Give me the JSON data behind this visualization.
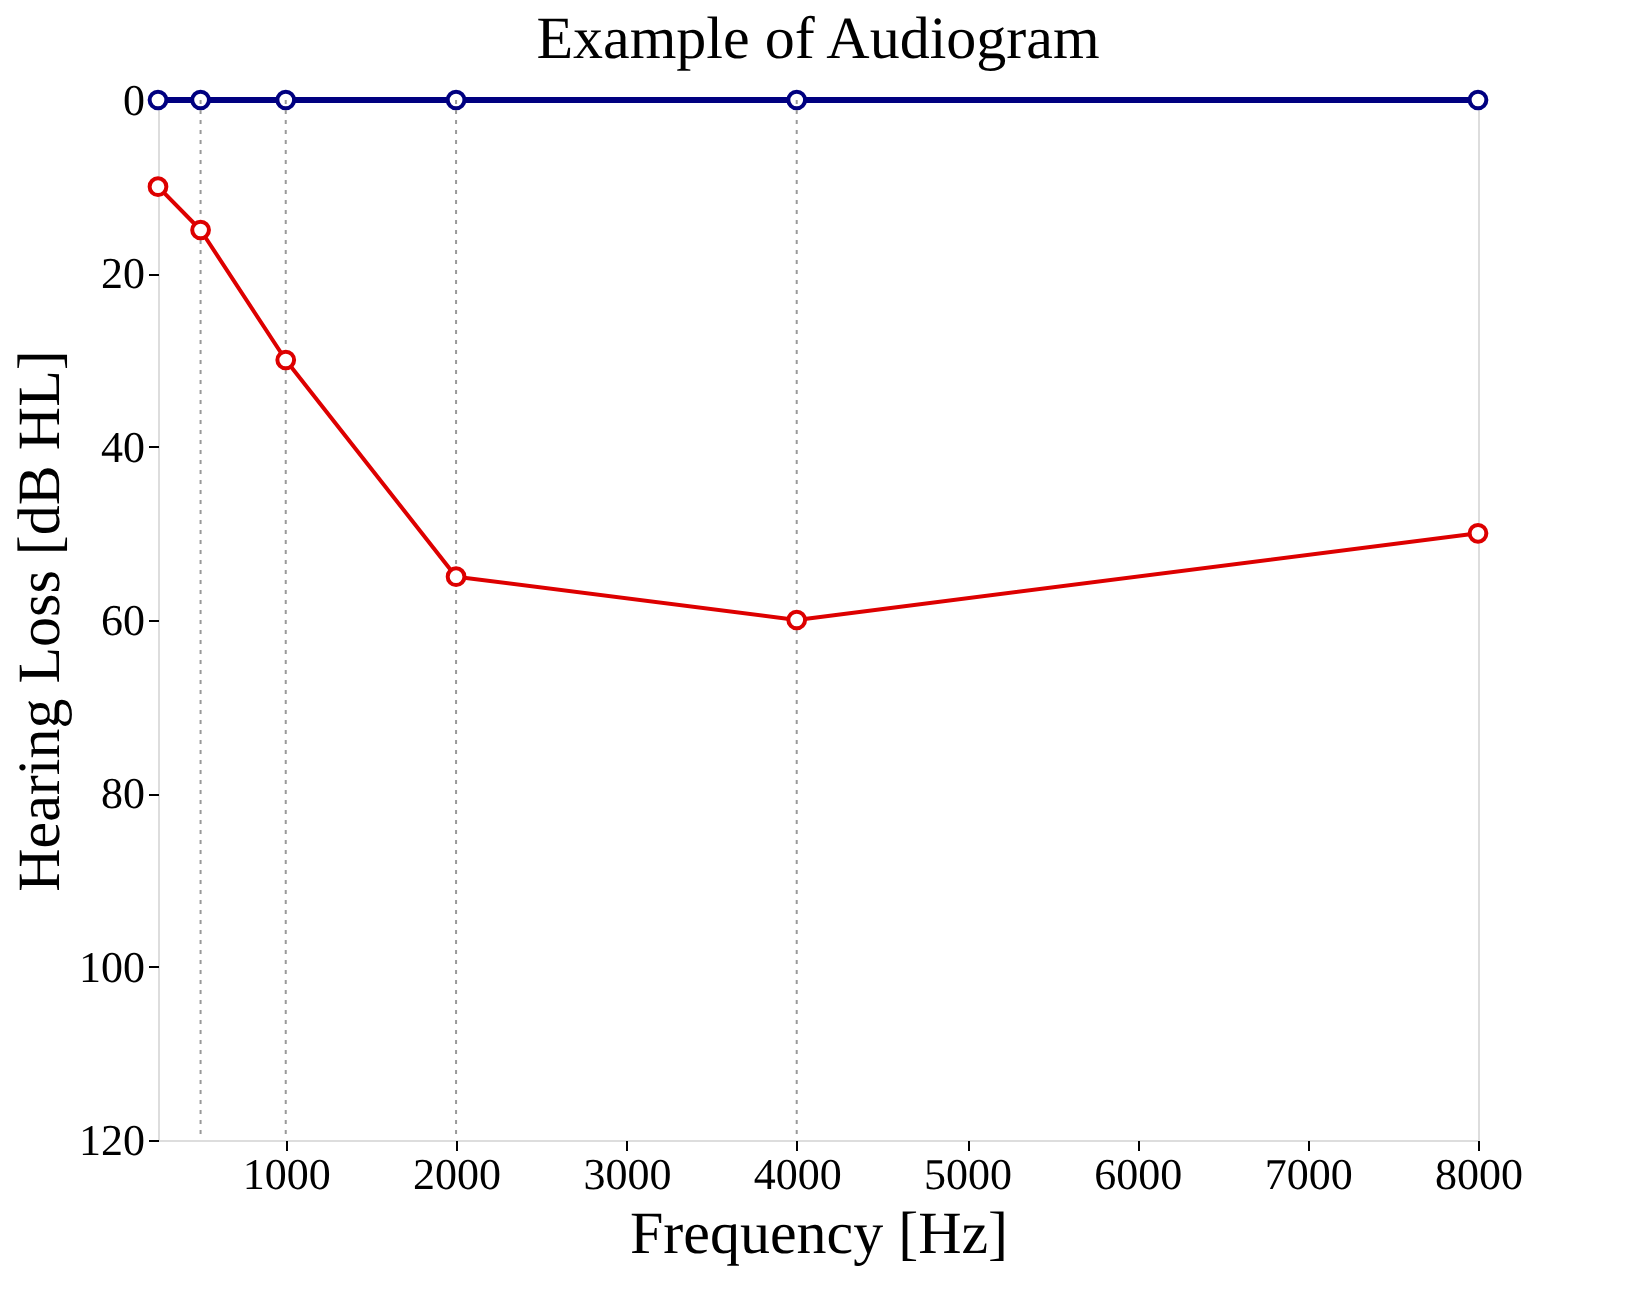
{
  "chart_data": {
    "type": "line",
    "title": "Example of Audiogram",
    "xlabel": "Frequency [Hz]",
    "ylabel": "Hearing Loss [dB HL]",
    "x": [
      250,
      500,
      1000,
      2000,
      4000,
      8000
    ],
    "series": [
      {
        "color": "#000080",
        "values": [
          0,
          0,
          0,
          0,
          0,
          0
        ]
      },
      {
        "color": "#dd0000",
        "values": [
          10,
          15,
          30,
          55,
          60,
          50
        ]
      }
    ],
    "xlim": [
      250,
      8000
    ],
    "xticks": [
      1000,
      2000,
      3000,
      4000,
      5000,
      6000,
      7000,
      8000
    ],
    "ylim": [
      120,
      0
    ],
    "yticks": [
      0,
      20,
      40,
      60,
      80,
      100,
      120
    ],
    "ref_lines": [
      {
        "axis": "x",
        "value": 500,
        "color": "#999999",
        "line_style": "dotted"
      },
      {
        "axis": "x",
        "value": 1000,
        "color": "#999999",
        "line_style": "dotted"
      },
      {
        "axis": "x",
        "value": 2000,
        "color": "#999999",
        "line_style": "dotted"
      },
      {
        "axis": "x",
        "value": 4000,
        "color": "#999999",
        "line_style": "dotted"
      }
    ],
    "marker": "circle",
    "line_style": "solid",
    "grid": false
  }
}
